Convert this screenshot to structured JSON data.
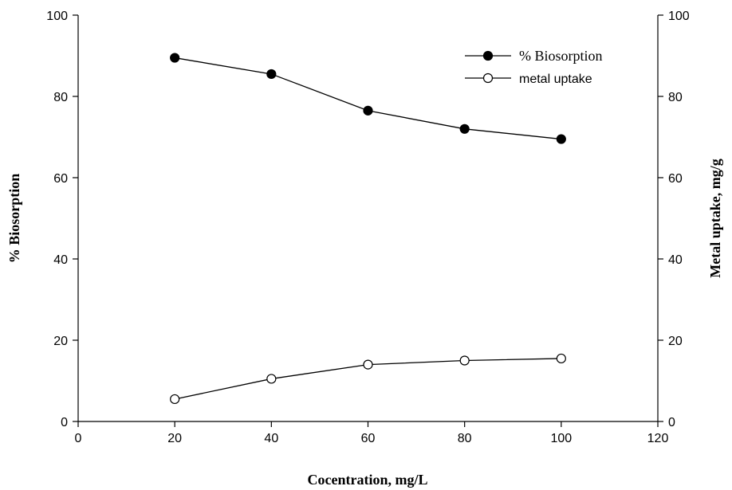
{
  "chart_data": {
    "type": "line",
    "x": [
      20,
      40,
      60,
      80,
      100
    ],
    "xlabel": "Cocentration, mg/L",
    "xlim": [
      0,
      120
    ],
    "xticks": [
      0,
      20,
      40,
      60,
      80,
      100,
      120
    ],
    "ylabel_left": "% Biosorption",
    "ylabel_right": "Metal uptake, mg/g",
    "ylim_left": [
      0,
      100
    ],
    "ylim_right": [
      0,
      100
    ],
    "yticks": [
      0,
      20,
      40,
      60,
      80,
      100
    ],
    "grid": false,
    "legend_position": "top-right",
    "series": [
      {
        "name": "% Biosorption",
        "axis": "left",
        "marker": "filled-circle",
        "color": "#000000",
        "values": [
          89.5,
          85.5,
          76.5,
          72.0,
          69.5
        ]
      },
      {
        "name": "metal uptake",
        "axis": "right",
        "marker": "open-circle",
        "color": "#000000",
        "values": [
          5.5,
          10.5,
          14.0,
          15.0,
          15.5
        ]
      }
    ]
  }
}
